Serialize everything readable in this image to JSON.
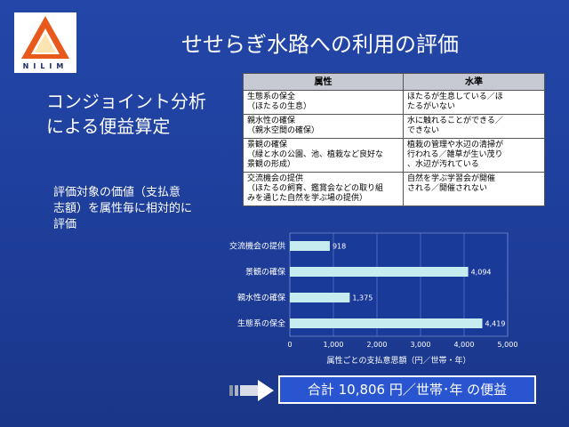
{
  "logo": {
    "icon": "nilim-triangle-logo",
    "text": "NILIM",
    "colors": [
      "#e85a1b",
      "#f3b21c"
    ]
  },
  "title": "せせらぎ水路への利用の評価",
  "headline": [
    "コンジョイント分析",
    "による便益算定"
  ],
  "description": [
    "評価対象の価値（支払意",
    "志額）を属性毎に相対的に",
    "評価"
  ],
  "table": {
    "headers": [
      "属性",
      "水準"
    ],
    "rows": [
      {
        "attribute": [
          "生態系の保全",
          "（ほたるの生息）"
        ],
        "level": [
          "ほたるが生息している／ほ",
          "たるがいない"
        ]
      },
      {
        "attribute": [
          "親水性の確保",
          "（親水空間の確保）"
        ],
        "level": [
          "水に触れることができる／",
          "できない"
        ]
      },
      {
        "attribute": [
          "景観の確保",
          "（緑と水の公園、池、植栽など良好な",
          "景観の形成）"
        ],
        "level": [
          "植栽の管理や水辺の清掃が",
          "行われる／雑草が生い茂り",
          "、水辺が汚れている"
        ]
      },
      {
        "attribute": [
          "交流機会の提供",
          "（ほたるの飼育、鑑賞会などの取り組",
          "みを通じた自然を学ぶ場の提供）"
        ],
        "level": [
          "自然を学ぶ学習会が開催",
          "される／開催されない"
        ]
      }
    ]
  },
  "chart_data": {
    "type": "bar",
    "orientation": "horizontal",
    "categories": [
      "交流機会の提供",
      "景観の確保",
      "親水性の確保",
      "生態系の保全"
    ],
    "values": [
      918,
      4094,
      1375,
      4419
    ],
    "value_labels": [
      "918",
      "4,094",
      "1,375",
      "4,419"
    ],
    "xlabel": "属性ごとの支払意思額（円／世帯・年）",
    "xlim": [
      0,
      5000
    ],
    "xticks": [
      0,
      1000,
      2000,
      3000,
      4000,
      5000
    ],
    "xtick_labels": [
      "0",
      "1,000",
      "2,000",
      "3,000",
      "4,000",
      "5,000"
    ],
    "grid": true,
    "colors": {
      "bar": "#c6ecf0",
      "background": "#1a3a9a"
    }
  },
  "total": {
    "icon": "arrow-right-icon",
    "text": "合計 10,806 円／世帯･年 の便益"
  }
}
